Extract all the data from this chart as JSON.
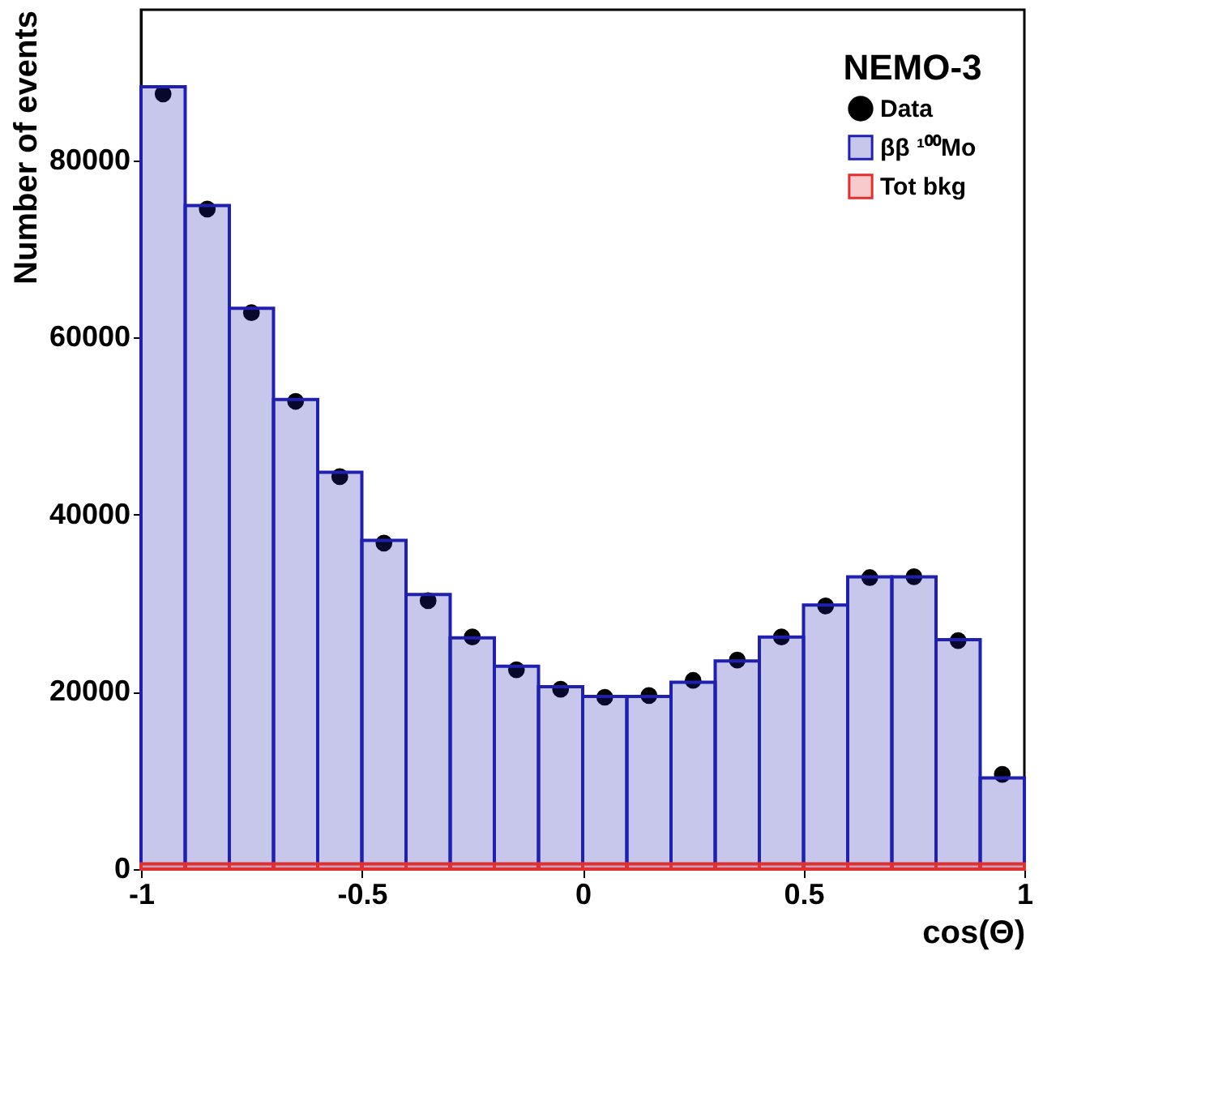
{
  "chart_data": {
    "type": "histogram",
    "xlabel": "cos(Θ)",
    "ylabel": "Number of events",
    "legend_title": "NEMO-3",
    "legend": "top right",
    "grid": false,
    "bins": [
      -1,
      -0.9,
      -0.8,
      -0.7,
      -0.6,
      -0.5,
      -0.4,
      -0.3,
      -0.2,
      -0.1,
      0,
      0.1,
      0.2,
      0.3,
      0.4,
      0.5,
      0.6,
      0.7,
      0.8,
      0.9,
      1
    ],
    "xlim": [
      -1,
      1
    ],
    "xticks": [
      -1,
      -0.5,
      0,
      0.5,
      1
    ],
    "ylim": [
      0,
      97000
    ],
    "yticks": [
      0,
      20000,
      40000,
      60000,
      80000
    ],
    "series": [
      {
        "name": "Data",
        "type": "scatter",
        "color": "#000000",
        "marker": "circle",
        "x": [
          -0.95,
          -0.85,
          -0.75,
          -0.65,
          -0.55,
          -0.45,
          -0.35,
          -0.25,
          -0.15,
          -0.05,
          0.05,
          0.15,
          0.25,
          0.35,
          0.45,
          0.55,
          0.65,
          0.75,
          0.85,
          0.95
        ],
        "values": [
          87500,
          74500,
          62800,
          52800,
          44300,
          36800,
          30300,
          26200,
          22500,
          20300,
          19400,
          19600,
          21300,
          23600,
          26200,
          29700,
          32900,
          33000,
          25800,
          10700
        ]
      },
      {
        "name": "ββ ¹⁰⁰Mo",
        "color": "#2020b0",
        "values": [
          88300,
          74900,
          63300,
          53000,
          44800,
          37100,
          31000,
          26100,
          22900,
          20600,
          19500,
          19500,
          21100,
          23500,
          26200,
          29800,
          33000,
          33000,
          25900,
          10300
        ]
      },
      {
        "name": "Tot bkg",
        "color": "#e03030",
        "values": [
          600,
          600,
          600,
          600,
          600,
          600,
          600,
          600,
          600,
          600,
          600,
          600,
          600,
          600,
          600,
          600,
          600,
          600,
          600,
          600
        ]
      }
    ]
  }
}
